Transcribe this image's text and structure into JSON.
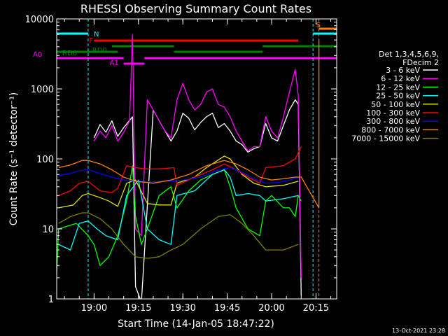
{
  "chart_data": {
    "type": "line",
    "title": "RHESSI Observing Summary Count Rates",
    "xlabel": "Start Time (14-Jan-05 18:47:22)",
    "ylabel": "Count Rate (s⁻¹ detector⁻¹)",
    "y_scale": "log",
    "ylim": [
      1,
      10000
    ],
    "xlim": [
      "18:47:22",
      "20:22:00"
    ],
    "y_ticks": [
      {
        "value": 1,
        "label": "1"
      },
      {
        "value": 10,
        "label": "10"
      },
      {
        "value": 100,
        "label": "100"
      },
      {
        "value": 1000,
        "label": "1000"
      },
      {
        "value": 10000,
        "label": "10000"
      }
    ],
    "x_ticks": [
      {
        "time": "19:00",
        "label": "19:00"
      },
      {
        "time": "19:15",
        "label": "19:15"
      },
      {
        "time": "19:30",
        "label": "19:30"
      },
      {
        "time": "19:45",
        "label": "19:45"
      },
      {
        "time": "20:00",
        "label": "20:00"
      },
      {
        "time": "20:15",
        "label": "20:15"
      }
    ],
    "legend": {
      "placement": "right",
      "header": [
        "Det 1,3,4,5,6,9,",
        "FDecim 2"
      ],
      "entries": [
        {
          "label": "3 - 6 keV",
          "color": "#ffffff"
        },
        {
          "label": "6 - 12 keV",
          "color": "#ff00ff"
        },
        {
          "label": "12 - 25 keV",
          "color": "#00ff00"
        },
        {
          "label": "25 - 50 keV",
          "color": "#00ffff"
        },
        {
          "label": "50 - 100 keV",
          "color": "#e0e000"
        },
        {
          "label": "100 - 300 keV",
          "color": "#ff0000"
        },
        {
          "label": "300 - 800 keV",
          "color": "#0000ff"
        },
        {
          "label": "800 - 7000 keV",
          "color": "#ff8000"
        },
        {
          "label": "7000 - 15000 keV",
          "color": "#808000"
        }
      ]
    },
    "flag_bars": [
      {
        "label": "N",
        "color": "#00ffff",
        "segments": [
          [
            "18:47:22",
            "18:58:00"
          ],
          [
            "20:14:00",
            "20:22:00"
          ]
        ]
      },
      {
        "label": "F",
        "color": "#ff0000",
        "segments": [
          [
            "19:00:00",
            "20:09:00"
          ]
        ]
      },
      {
        "label": "S",
        "color": "#ff8000",
        "segments": [
          [
            "20:16:00",
            "20:22:00"
          ]
        ]
      },
      {
        "label": "RD0",
        "color": "#008000",
        "segments": [
          [
            "19:06:00",
            "19:27:00"
          ],
          [
            "19:57:00",
            "20:22:00"
          ]
        ]
      },
      {
        "label": "RD6",
        "color": "#008000",
        "segments": [
          [
            "18:47:22",
            "19:08:00"
          ],
          [
            "19:27:00",
            "19:57:00"
          ]
        ]
      },
      {
        "label": "A0",
        "color": "#ff00ff",
        "segments": [
          [
            "18:47:22",
            "19:10:00"
          ],
          [
            "19:17:00",
            "20:22:00"
          ]
        ]
      },
      {
        "label": "A1",
        "color": "#ff00ff",
        "segments": [
          [
            "19:10:00",
            "19:17:00"
          ]
        ]
      }
    ],
    "vlines": [
      {
        "time": "18:47:22",
        "color": "#00ffff"
      },
      {
        "time": "18:58:00",
        "color": "#00ffff"
      },
      {
        "time": "20:14:00",
        "color": "#00ffff"
      },
      {
        "time": "20:16:00",
        "color": "#ff8000"
      },
      {
        "time": "20:22:00",
        "color": "#00ffff"
      }
    ],
    "series": [
      {
        "name": "3 - 6 keV",
        "color": "#ffffff",
        "points": [
          [
            "19:00",
            200
          ],
          [
            "19:02",
            310
          ],
          [
            "19:04",
            240
          ],
          [
            "19:06",
            350
          ],
          [
            "19:08",
            210
          ],
          [
            "19:10",
            280
          ],
          [
            "19:13",
            400
          ],
          [
            "19:14",
            1.5
          ],
          [
            "19:16",
            0.9
          ],
          [
            "19:20",
            500
          ],
          [
            "19:22",
            350
          ],
          [
            "19:24",
            250
          ],
          [
            "19:26",
            180
          ],
          [
            "19:28",
            250
          ],
          [
            "19:30",
            450
          ],
          [
            "19:32",
            380
          ],
          [
            "19:34",
            260
          ],
          [
            "19:36",
            330
          ],
          [
            "19:38",
            400
          ],
          [
            "19:40",
            450
          ],
          [
            "19:42",
            280
          ],
          [
            "19:44",
            320
          ],
          [
            "19:46",
            250
          ],
          [
            "19:48",
            180
          ],
          [
            "19:50",
            160
          ],
          [
            "19:52",
            125
          ],
          [
            "19:54",
            140
          ],
          [
            "19:56",
            150
          ],
          [
            "19:58",
            320
          ],
          [
            "20:00",
            200
          ],
          [
            "20:02",
            180
          ],
          [
            "20:04",
            300
          ],
          [
            "20:06",
            500
          ],
          [
            "20:08",
            700
          ],
          [
            "20:09",
            600
          ],
          [
            "20:10",
            1.1
          ]
        ]
      },
      {
        "name": "6 - 12 keV",
        "color": "#ff00ff",
        "points": [
          [
            "19:00",
            180
          ],
          [
            "19:02",
            250
          ],
          [
            "19:04",
            200
          ],
          [
            "19:06",
            300
          ],
          [
            "19:08",
            180
          ],
          [
            "19:10",
            240
          ],
          [
            "19:12",
            350
          ],
          [
            "19:13",
            6000
          ],
          [
            "19:14",
            10
          ],
          [
            "19:16",
            8
          ],
          [
            "19:18",
            700
          ],
          [
            "19:20",
            500
          ],
          [
            "19:22",
            350
          ],
          [
            "19:24",
            250
          ],
          [
            "19:26",
            200
          ],
          [
            "19:28",
            700
          ],
          [
            "19:30",
            1200
          ],
          [
            "19:32",
            700
          ],
          [
            "19:34",
            500
          ],
          [
            "19:36",
            600
          ],
          [
            "19:38",
            900
          ],
          [
            "19:40",
            1000
          ],
          [
            "19:42",
            600
          ],
          [
            "19:44",
            550
          ],
          [
            "19:46",
            400
          ],
          [
            "19:48",
            250
          ],
          [
            "19:50",
            180
          ],
          [
            "19:52",
            130
          ],
          [
            "19:54",
            150
          ],
          [
            "19:56",
            150
          ],
          [
            "19:58",
            400
          ],
          [
            "20:00",
            250
          ],
          [
            "20:02",
            200
          ],
          [
            "20:04",
            400
          ],
          [
            "20:06",
            900
          ],
          [
            "20:08",
            1900
          ],
          [
            "20:09",
            800
          ],
          [
            "20:10",
            2.0
          ]
        ]
      },
      {
        "name": "12 - 25 keV",
        "color": "#00ff00",
        "points": [
          [
            "18:47",
            1.0
          ],
          [
            "18:48",
            10
          ],
          [
            "18:54",
            12
          ],
          [
            "18:58",
            8
          ],
          [
            "19:00",
            6
          ],
          [
            "19:02",
            3
          ],
          [
            "19:05",
            4
          ],
          [
            "19:08",
            8
          ],
          [
            "19:11",
            25
          ],
          [
            "19:13",
            80
          ],
          [
            "19:14",
            15
          ],
          [
            "19:16",
            6
          ],
          [
            "19:18",
            10
          ],
          [
            "19:22",
            30
          ],
          [
            "19:26",
            40
          ],
          [
            "19:28",
            20
          ],
          [
            "19:32",
            35
          ],
          [
            "19:36",
            50
          ],
          [
            "19:40",
            60
          ],
          [
            "19:44",
            70
          ],
          [
            "19:46",
            40
          ],
          [
            "19:48",
            20
          ],
          [
            "19:52",
            10
          ],
          [
            "19:56",
            8
          ],
          [
            "19:58",
            25
          ],
          [
            "20:00",
            30
          ],
          [
            "20:04",
            20
          ],
          [
            "20:06",
            20
          ],
          [
            "20:08",
            15
          ],
          [
            "20:09",
            30
          ],
          [
            "20:10",
            25
          ]
        ]
      },
      {
        "name": "25 - 50 keV",
        "color": "#00ffff",
        "points": [
          [
            "18:48",
            6
          ],
          [
            "18:52",
            5
          ],
          [
            "18:55",
            12
          ],
          [
            "18:58",
            13
          ],
          [
            "19:01",
            10
          ],
          [
            "19:04",
            8
          ],
          [
            "19:08",
            7
          ],
          [
            "19:11",
            30
          ],
          [
            "19:15",
            50
          ],
          [
            "19:18",
            10
          ],
          [
            "19:22",
            7
          ],
          [
            "19:26",
            6
          ],
          [
            "19:28",
            30
          ],
          [
            "19:34",
            35
          ],
          [
            "19:40",
            60
          ],
          [
            "19:44",
            70
          ],
          [
            "19:46",
            55
          ],
          [
            "19:48",
            30
          ],
          [
            "19:52",
            32
          ],
          [
            "19:56",
            30
          ],
          [
            "19:58",
            25
          ],
          [
            "20:04",
            27
          ],
          [
            "20:09",
            30
          ]
        ]
      },
      {
        "name": "50 - 100 keV",
        "color": "#e0e000",
        "points": [
          [
            "18:48",
            20
          ],
          [
            "18:53",
            22
          ],
          [
            "18:56",
            30
          ],
          [
            "18:58",
            32
          ],
          [
            "19:02",
            28
          ],
          [
            "19:05",
            25
          ],
          [
            "19:08",
            21
          ],
          [
            "19:11",
            45
          ],
          [
            "19:14",
            50
          ],
          [
            "19:18",
            23
          ],
          [
            "19:22",
            22
          ],
          [
            "19:26",
            22
          ],
          [
            "19:28",
            45
          ],
          [
            "19:34",
            55
          ],
          [
            "19:38",
            75
          ],
          [
            "19:44",
            110
          ],
          [
            "19:46",
            100
          ],
          [
            "19:50",
            60
          ],
          [
            "19:54",
            45
          ],
          [
            "19:58",
            40
          ],
          [
            "20:04",
            42
          ],
          [
            "20:09",
            48
          ]
        ]
      },
      {
        "name": "100 - 300 keV",
        "color": "#ff0000",
        "points": [
          [
            "18:48",
            30
          ],
          [
            "18:52",
            35
          ],
          [
            "18:55",
            45
          ],
          [
            "18:58",
            48
          ],
          [
            "19:02",
            35
          ],
          [
            "19:06",
            33
          ],
          [
            "19:08",
            38
          ],
          [
            "19:11",
            80
          ],
          [
            "19:14",
            75
          ],
          [
            "19:18",
            72
          ],
          [
            "19:22",
            72
          ],
          [
            "19:27",
            75
          ],
          [
            "19:28",
            42
          ],
          [
            "19:34",
            55
          ],
          [
            "19:40",
            70
          ],
          [
            "19:44",
            85
          ],
          [
            "19:48",
            70
          ],
          [
            "19:52",
            55
          ],
          [
            "19:56",
            45
          ],
          [
            "19:58",
            75
          ],
          [
            "20:04",
            80
          ],
          [
            "20:08",
            100
          ],
          [
            "20:10",
            150
          ]
        ]
      },
      {
        "name": "300 - 800 keV",
        "color": "#0000ff",
        "points": [
          [
            "18:48",
            58
          ],
          [
            "18:52",
            62
          ],
          [
            "18:55",
            68
          ],
          [
            "18:58",
            70
          ],
          [
            "19:02",
            62
          ],
          [
            "19:06",
            55
          ],
          [
            "19:10",
            50
          ],
          [
            "19:14",
            48
          ],
          [
            "19:20",
            47
          ],
          [
            "19:26",
            48
          ],
          [
            "19:30",
            50
          ],
          [
            "19:36",
            55
          ],
          [
            "19:42",
            70
          ],
          [
            "19:46",
            75
          ],
          [
            "19:50",
            65
          ],
          [
            "19:54",
            52
          ],
          [
            "19:58",
            45
          ],
          [
            "20:02",
            46
          ],
          [
            "20:06",
            50
          ],
          [
            "20:09",
            55
          ]
        ]
      },
      {
        "name": "800 - 7000 keV",
        "color": "#ff8000",
        "points": [
          [
            "18:48",
            75
          ],
          [
            "18:52",
            82
          ],
          [
            "18:56",
            95
          ],
          [
            "18:58",
            95
          ],
          [
            "19:02",
            85
          ],
          [
            "19:06",
            70
          ],
          [
            "19:10",
            55
          ],
          [
            "19:14",
            48
          ],
          [
            "19:20",
            45
          ],
          [
            "19:26",
            50
          ],
          [
            "19:32",
            60
          ],
          [
            "19:38",
            80
          ],
          [
            "19:44",
            95
          ],
          [
            "19:48",
            85
          ],
          [
            "19:52",
            70
          ],
          [
            "19:56",
            55
          ],
          [
            "20:00",
            50
          ],
          [
            "20:04",
            52
          ],
          [
            "20:08",
            55
          ],
          [
            "20:10",
            55
          ],
          [
            "20:16",
            20
          ],
          [
            "20:16",
            5000
          ]
        ]
      },
      {
        "name": "7000 - 15000 keV",
        "color": "#808000",
        "points": [
          [
            "18:48",
            12
          ],
          [
            "18:52",
            15
          ],
          [
            "18:56",
            17
          ],
          [
            "18:58",
            17
          ],
          [
            "19:02",
            14
          ],
          [
            "19:06",
            10
          ],
          [
            "19:10",
            6
          ],
          [
            "19:14",
            4
          ],
          [
            "19:18",
            3.8
          ],
          [
            "19:22",
            4
          ],
          [
            "19:26",
            5
          ],
          [
            "19:30",
            6
          ],
          [
            "19:36",
            10
          ],
          [
            "19:42",
            15
          ],
          [
            "19:46",
            16
          ],
          [
            "19:50",
            12
          ],
          [
            "19:54",
            8
          ],
          [
            "19:58",
            5
          ],
          [
            "20:04",
            5
          ],
          [
            "20:09",
            6
          ]
        ]
      }
    ]
  },
  "footer_timestamp": "13-Oct-2021 23:28"
}
